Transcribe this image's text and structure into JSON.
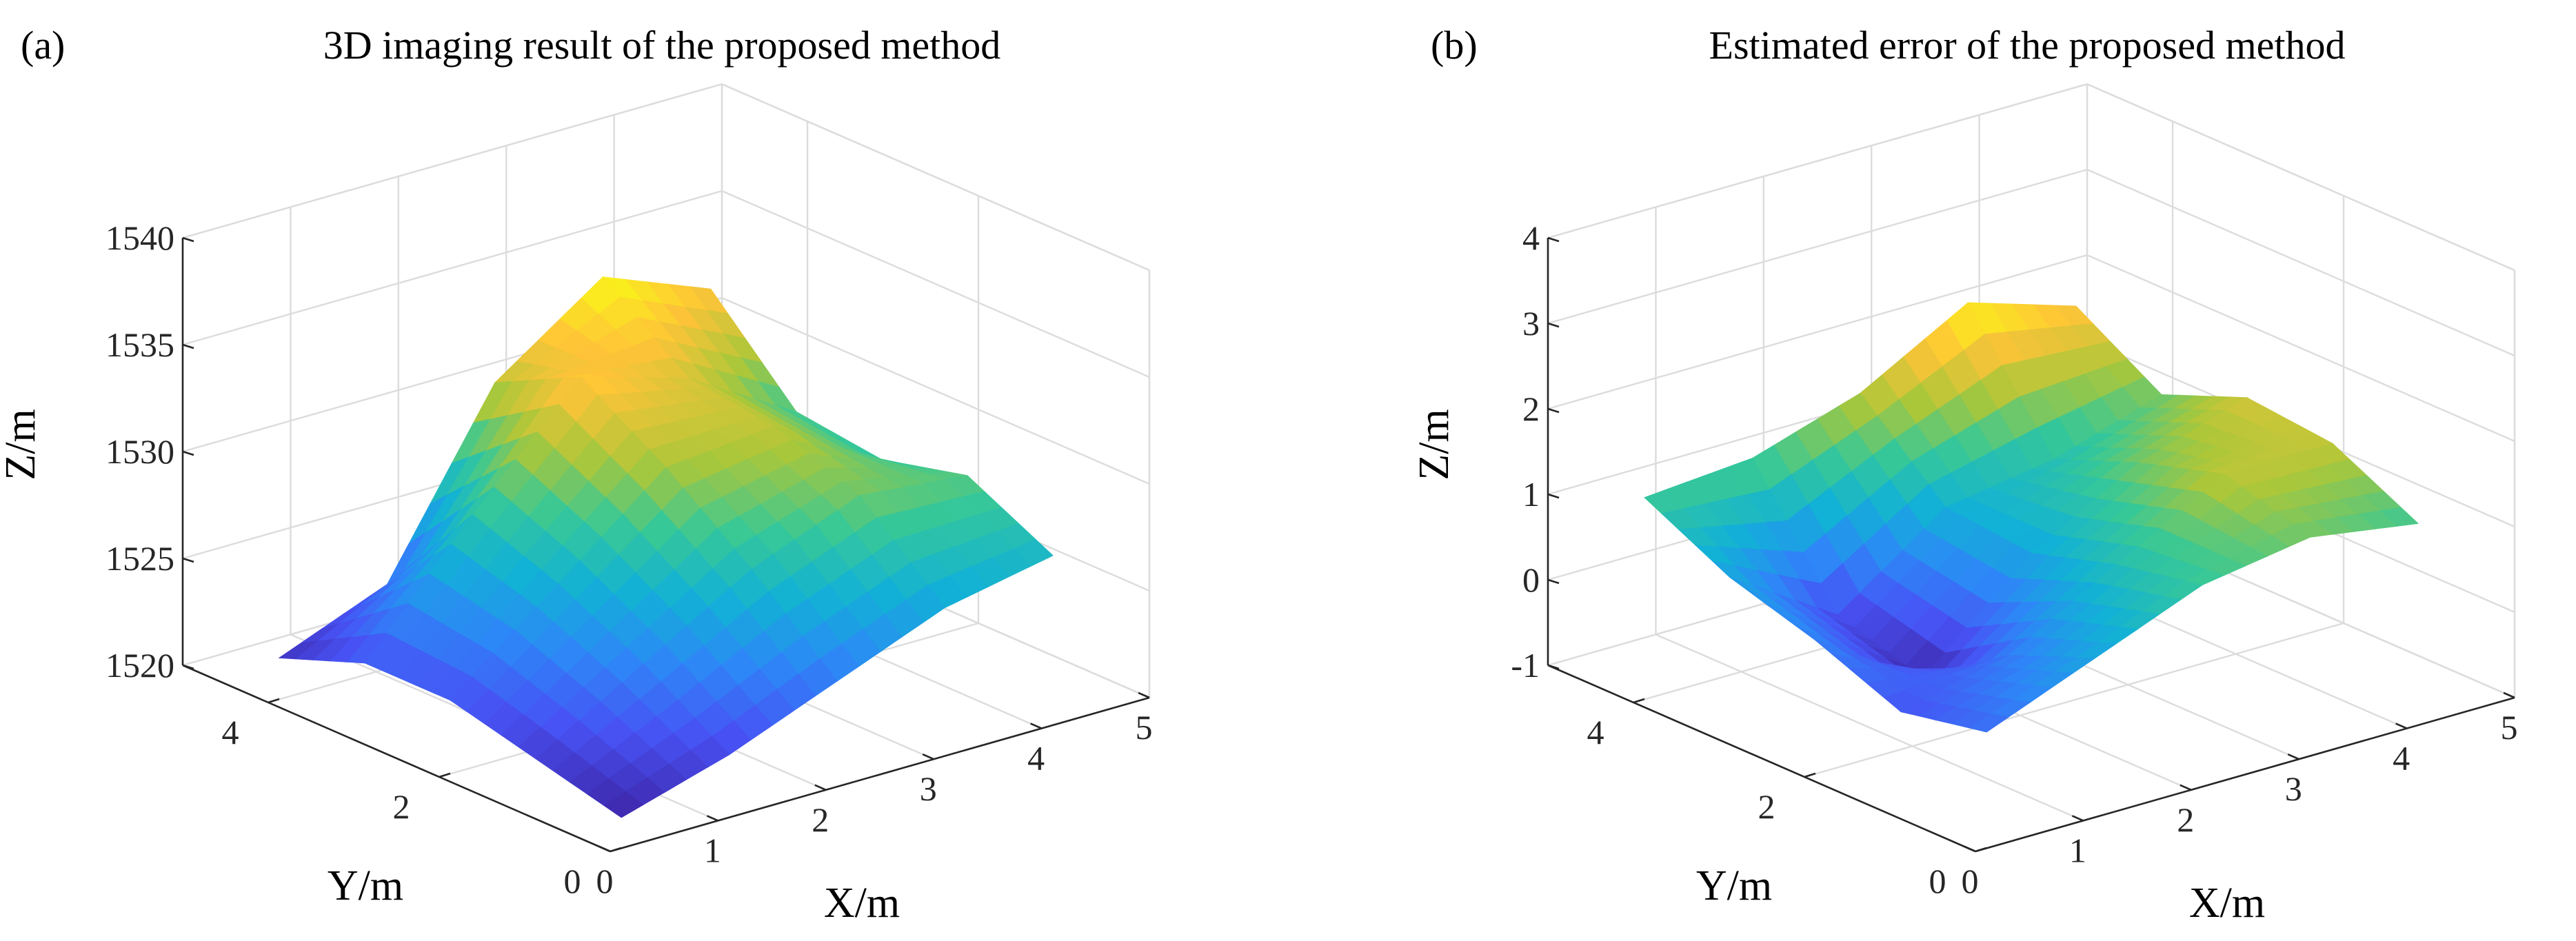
{
  "chart_data": [
    {
      "type": "surface",
      "panel_label": "(a)",
      "title": "3D imaging result of the proposed method",
      "xlabel": "X/m",
      "ylabel": "Y/m",
      "zlabel": "Z/m",
      "xlim": [
        0,
        5
      ],
      "ylim": [
        0,
        5
      ],
      "zlim": [
        1520,
        1540
      ],
      "xticks": [
        0,
        1,
        2,
        3,
        4,
        5
      ],
      "yticks": [
        0,
        2,
        4
      ],
      "zticks": [
        1520,
        1525,
        1530,
        1535,
        1540
      ],
      "xtick_labels": [
        "0",
        "1",
        "2",
        "3",
        "4",
        "5"
      ],
      "ytick_labels": [
        "0",
        "2",
        "4"
      ],
      "ztick_labels": [
        "1520",
        "1525",
        "1530",
        "1535",
        "1540"
      ],
      "colormap": "parula",
      "grid": true,
      "x": [
        0.5,
        1.5,
        2.5,
        3.5,
        4.5
      ],
      "y": [
        0.5,
        1.5,
        2.5,
        3.5,
        4.5
      ],
      "z": [
        [
          1520.0,
          1521.5,
          1523.5,
          1525.5,
          1526.5
        ],
        [
          1521.0,
          1524.0,
          1527.0,
          1529.0,
          1528.5
        ],
        [
          1522.0,
          1526.0,
          1530.0,
          1530.5,
          1527.5
        ],
        [
          1522.0,
          1527.5,
          1532.5,
          1531.0,
          1528.0
        ],
        [
          1520.5,
          1522.5,
          1530.5,
          1534.0,
          1532.0
        ]
      ]
    },
    {
      "type": "surface",
      "panel_label": "(b)",
      "title": "Estimated error of the proposed method",
      "xlabel": "X/m",
      "ylabel": "Y/m",
      "zlabel": "Z/m",
      "xlim": [
        0,
        5
      ],
      "ylim": [
        0,
        5
      ],
      "zlim": [
        -1,
        4
      ],
      "xticks": [
        0,
        1,
        2,
        3,
        4,
        5
      ],
      "yticks": [
        0,
        2,
        4
      ],
      "zticks": [
        -1,
        0,
        1,
        2,
        3,
        4
      ],
      "xtick_labels": [
        "0",
        "1",
        "2",
        "3",
        "4",
        "5"
      ],
      "ytick_labels": [
        "0",
        "2",
        "4"
      ],
      "ztick_labels": [
        "-1",
        "0",
        "1",
        "2",
        "3",
        "4"
      ],
      "colormap": "parula",
      "grid": true,
      "x": [
        0.5,
        1.5,
        2.5,
        3.5,
        4.5
      ],
      "y": [
        0.5,
        1.5,
        2.5,
        3.5,
        4.5
      ],
      "z": [
        [
          0.0,
          0.5,
          1.0,
          1.2,
          1.0
        ],
        [
          -0.2,
          0.1,
          0.8,
          1.5,
          1.5
        ],
        [
          0.2,
          -0.6,
          0.5,
          1.2,
          1.6
        ],
        [
          0.5,
          -0.3,
          0.6,
          0.8,
          1.2
        ],
        [
          1.0,
          1.1,
          1.5,
          2.2,
          1.8
        ]
      ]
    }
  ]
}
